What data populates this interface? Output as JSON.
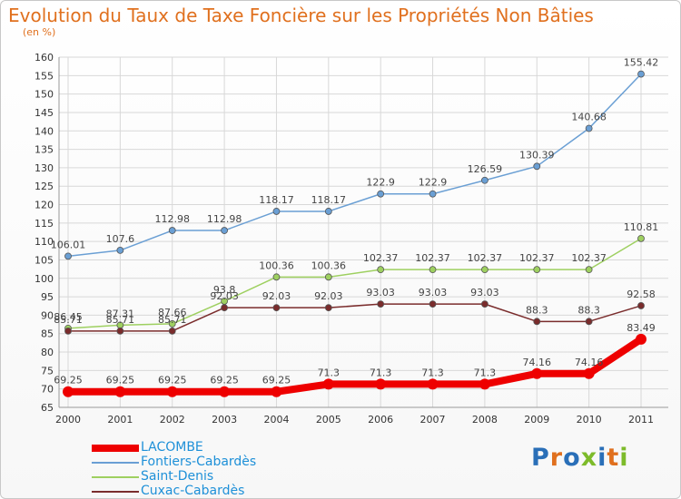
{
  "header": {
    "title": "Evolution du Taux de Taxe Foncière sur les Propriétés Non Bâties",
    "unit": "(en %)"
  },
  "logo": {
    "text": "Proxiti",
    "colors": [
      "#2a6fb8",
      "#e0701e",
      "#2a6fb8",
      "#7dbb2a",
      "#2a6fb8",
      "#e0701e",
      "#7dbb2a"
    ]
  },
  "colors": {
    "title": "#e0701e",
    "legend_text": "#1e90d8",
    "grid": "#d8d8d8"
  },
  "chart_data": {
    "type": "line",
    "title": "Evolution du Taux de Taxe Foncière sur les Propriétés Non Bâties",
    "ylabel": "(en %)",
    "xlabel": "",
    "x": [
      "2000",
      "2001",
      "2002",
      "2003",
      "2004",
      "2005",
      "2006",
      "2007",
      "2008",
      "2009",
      "2010",
      "2011"
    ],
    "ylim": [
      65,
      160
    ],
    "yticks": [
      65,
      70,
      75,
      80,
      85,
      90,
      95,
      100,
      105,
      110,
      115,
      120,
      125,
      130,
      135,
      140,
      145,
      150,
      155,
      160
    ],
    "grid": true,
    "legend_position": "bottom-left",
    "series": [
      {
        "name": "LACOMBE",
        "color": "#ee0000",
        "emphasis": true,
        "values": [
          69.25,
          69.25,
          69.25,
          69.25,
          69.25,
          71.3,
          71.3,
          71.3,
          71.3,
          74.16,
          74.16,
          83.49
        ],
        "labels": [
          "69.25",
          "69.25",
          "69.25",
          "69.25",
          "69.25",
          "71.3",
          "71.3",
          "71.3",
          "71.3",
          "74.16",
          "74.16",
          "83.49"
        ]
      },
      {
        "name": "Fontiers-Cabardès",
        "color": "#6a9fd4",
        "emphasis": false,
        "values": [
          106.01,
          107.6,
          112.98,
          112.98,
          118.17,
          118.17,
          122.9,
          122.9,
          126.59,
          130.39,
          140.68,
          155.42
        ],
        "labels": [
          "106.01",
          "107.6",
          "112.98",
          "112.98",
          "118.17",
          "118.17",
          "122.9",
          "122.9",
          "126.59",
          "130.39",
          "140.68",
          "155.42"
        ]
      },
      {
        "name": "Saint-Denis",
        "color": "#9ed060",
        "emphasis": false,
        "values": [
          86.45,
          87.31,
          87.66,
          93.8,
          100.36,
          100.36,
          102.37,
          102.37,
          102.37,
          102.37,
          102.37,
          110.81
        ],
        "labels": [
          "86.45",
          "87.31",
          "87.66",
          "93.8",
          "100.36",
          "100.36",
          "102.37",
          "102.37",
          "102.37",
          "102.37",
          "102.37",
          "110.81"
        ]
      },
      {
        "name": "Cuxac-Cabardès",
        "color": "#7a2c2c",
        "emphasis": false,
        "values": [
          85.71,
          85.71,
          85.71,
          92.03,
          92.03,
          92.03,
          93.03,
          93.03,
          93.03,
          88.3,
          88.3,
          92.58
        ],
        "labels": [
          "85.71",
          "85.71",
          "85.71",
          "92.03",
          "92.03",
          "92.03",
          "93.03",
          "93.03",
          "93.03",
          "88.3",
          "88.3",
          "92.58"
        ]
      }
    ]
  }
}
